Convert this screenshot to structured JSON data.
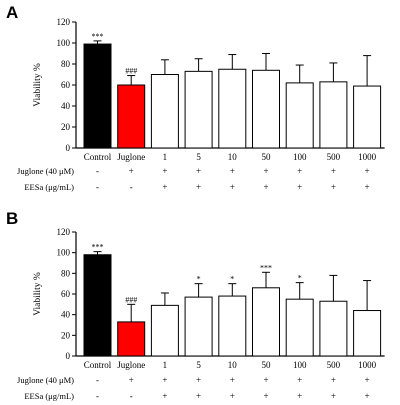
{
  "colors": {
    "control": "#000000",
    "juglone": "#ff0000",
    "treatment": "#ffffff",
    "outline": "#000000"
  },
  "chart_data": [
    {
      "type": "bar",
      "panel": "A",
      "ylabel": "Viability %",
      "ylim": [
        0,
        120
      ],
      "yticks": [
        0,
        20,
        40,
        60,
        80,
        100,
        120
      ],
      "categories": [
        "Control",
        "Juglone",
        "1",
        "5",
        "10",
        "50",
        "100",
        "500",
        "1000"
      ],
      "values": [
        99,
        60,
        70,
        73,
        75,
        74,
        62,
        63,
        59
      ],
      "errors": [
        3,
        9,
        14,
        12,
        14,
        16,
        17,
        18,
        29
      ],
      "significance": [
        "***",
        "###",
        "",
        "",
        "",
        "",
        "",
        "",
        ""
      ],
      "rows": [
        {
          "label": "Juglone (40 μM)",
          "marks": [
            "-",
            "+",
            "+",
            "+",
            "+",
            "+",
            "+",
            "+",
            "+"
          ]
        },
        {
          "label": "EESa (μg/mL)",
          "marks": [
            "-",
            "-",
            "+",
            "+",
            "+",
            "+",
            "+",
            "+",
            "+"
          ]
        }
      ]
    },
    {
      "type": "bar",
      "panel": "B",
      "ylabel": "Viability %",
      "ylim": [
        0,
        120
      ],
      "yticks": [
        0,
        20,
        40,
        60,
        80,
        100,
        120
      ],
      "categories": [
        "Control",
        "Juglone",
        "1",
        "5",
        "10",
        "50",
        "100",
        "500",
        "1000"
      ],
      "values": [
        98,
        33,
        49,
        57,
        58,
        66,
        55,
        53,
        44
      ],
      "errors": [
        3,
        17,
        12,
        13,
        12,
        15,
        16,
        25,
        29
      ],
      "significance": [
        "***",
        "###",
        "",
        "*",
        "*",
        "***",
        "*",
        "",
        ""
      ],
      "rows": [
        {
          "label": "Juglone (40 μM)",
          "marks": [
            "-",
            "+",
            "+",
            "+",
            "+",
            "+",
            "+",
            "+",
            "+"
          ]
        },
        {
          "label": "EESa (μg/mL)",
          "marks": [
            "-",
            "-",
            "+",
            "+",
            "+",
            "+",
            "+",
            "+",
            "+"
          ]
        }
      ]
    }
  ]
}
